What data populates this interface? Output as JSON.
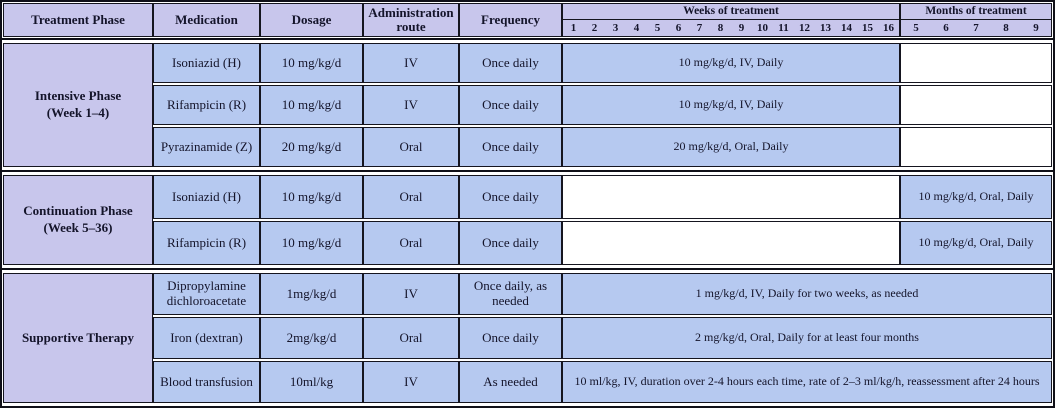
{
  "colors": {
    "header_bg": "#c8c6ec",
    "phase_cell_bg": "#c8c6ec",
    "data_cell_bg": "#b6c9f0",
    "bar_bg": "#b6c9f0",
    "empty_bg": "#ffffff",
    "border": "#101018",
    "text": "#14142a"
  },
  "header": {
    "treatment_phase": "Treatment Phase",
    "medication": "Medication",
    "dosage": "Dosage",
    "admin_route": "Administration route",
    "frequency": "Frequency",
    "weeks_label": "Weeks of treatment",
    "months_label": "Months of treatment",
    "week_numbers": [
      "1",
      "2",
      "3",
      "4",
      "5",
      "6",
      "7",
      "8",
      "9",
      "10",
      "11",
      "12",
      "13",
      "14",
      "15",
      "16"
    ],
    "month_numbers": [
      "5",
      "6",
      "7",
      "8",
      "9"
    ]
  },
  "phases": [
    {
      "label": "Intensive Phase",
      "sub": "(Week 1–4)",
      "rows": [
        {
          "medication": "Isoniazid (H)",
          "dosage": "10 mg/kg/d",
          "route": "IV",
          "frequency": "Once daily",
          "bar": "10 mg/kg/d, IV, Daily"
        },
        {
          "medication": "Rifampicin (R)",
          "dosage": "10 mg/kg/d",
          "route": "IV",
          "frequency": "Once daily",
          "bar": "10 mg/kg/d, IV, Daily"
        },
        {
          "medication": "Pyrazinamide (Z)",
          "dosage": "20 mg/kg/d",
          "route": "Oral",
          "frequency": "Once daily",
          "bar": "20 mg/kg/d, Oral, Daily"
        }
      ]
    },
    {
      "label": "Continuation Phase",
      "sub": "(Week 5–36)",
      "rows": [
        {
          "medication": "Isoniazid (H)",
          "dosage": "10 mg/kg/d",
          "route": "Oral",
          "frequency": "Once daily",
          "bar": "10 mg/kg/d, Oral, Daily"
        },
        {
          "medication": "Rifampicin (R)",
          "dosage": "10 mg/kg/d",
          "route": "Oral",
          "frequency": "Once daily",
          "bar": "10 mg/kg/d, Oral, Daily"
        }
      ]
    },
    {
      "label": "Supportive Therapy",
      "sub": "",
      "rows": [
        {
          "medication": "Dipropylamine dichloroacetate",
          "dosage": "1mg/kg/d",
          "route": "IV",
          "frequency": "Once daily, as needed",
          "bar": "1 mg/kg/d, IV, Daily for two weeks, as needed"
        },
        {
          "medication": "Iron (dextran)",
          "dosage": "2mg/kg/d",
          "route": "Oral",
          "frequency": "Once daily",
          "bar": "2 mg/kg/d, Oral, Daily for at least four months"
        },
        {
          "medication": "Blood transfusion",
          "dosage": "10ml/kg",
          "route": "IV",
          "frequency": "As needed",
          "bar": "10 ml/kg, IV, duration over 2-4 hours each time, rate of 2–3 ml/kg/h, reassessment after 24 hours"
        }
      ]
    }
  ],
  "chart_data": {
    "type": "table",
    "columns": [
      "Treatment Phase",
      "Medication",
      "Dosage",
      "Administration route",
      "Frequency",
      "Weeks of treatment (1–16)",
      "Months of treatment (5–9)"
    ],
    "rows": [
      {
        "phase": "Intensive Phase (Week 1–4)",
        "medication": "Isoniazid (H)",
        "dosage": "10 mg/kg/d",
        "route": "IV",
        "frequency": "Once daily",
        "timeline": "10 mg/kg/d, IV, Daily",
        "timeline_span": "weeks 1-16"
      },
      {
        "phase": "Intensive Phase (Week 1–4)",
        "medication": "Rifampicin (R)",
        "dosage": "10 mg/kg/d",
        "route": "IV",
        "frequency": "Once daily",
        "timeline": "10 mg/kg/d, IV, Daily",
        "timeline_span": "weeks 1-16"
      },
      {
        "phase": "Intensive Phase (Week 1–4)",
        "medication": "Pyrazinamide (Z)",
        "dosage": "20 mg/kg/d",
        "route": "Oral",
        "frequency": "Once daily",
        "timeline": "20 mg/kg/d, Oral, Daily",
        "timeline_span": "weeks 1-16"
      },
      {
        "phase": "Continuation Phase (Week 5–36)",
        "medication": "Isoniazid (H)",
        "dosage": "10 mg/kg/d",
        "route": "Oral",
        "frequency": "Once daily",
        "timeline": "10 mg/kg/d, Oral, Daily",
        "timeline_span": "months 5-9"
      },
      {
        "phase": "Continuation Phase (Week 5–36)",
        "medication": "Rifampicin (R)",
        "dosage": "10 mg/kg/d",
        "route": "Oral",
        "frequency": "Once daily",
        "timeline": "10 mg/kg/d, Oral, Daily",
        "timeline_span": "months 5-9"
      },
      {
        "phase": "Supportive Therapy",
        "medication": "Dipropylamine dichloroacetate",
        "dosage": "1mg/kg/d",
        "route": "IV",
        "frequency": "Once daily, as needed",
        "timeline": "1 mg/kg/d, IV, Daily for two weeks, as needed",
        "timeline_span": "full"
      },
      {
        "phase": "Supportive Therapy",
        "medication": "Iron (dextran)",
        "dosage": "2mg/kg/d",
        "route": "Oral",
        "frequency": "Once daily",
        "timeline": "2 mg/kg/d, Oral, Daily for at least four months",
        "timeline_span": "full"
      },
      {
        "phase": "Supportive Therapy",
        "medication": "Blood transfusion",
        "dosage": "10ml/kg",
        "route": "IV",
        "frequency": "As needed",
        "timeline": "10 ml/kg, IV, duration over 2-4 hours each time, rate of 2–3 ml/kg/h, reassessment after 24 hours",
        "timeline_span": "full"
      }
    ]
  }
}
